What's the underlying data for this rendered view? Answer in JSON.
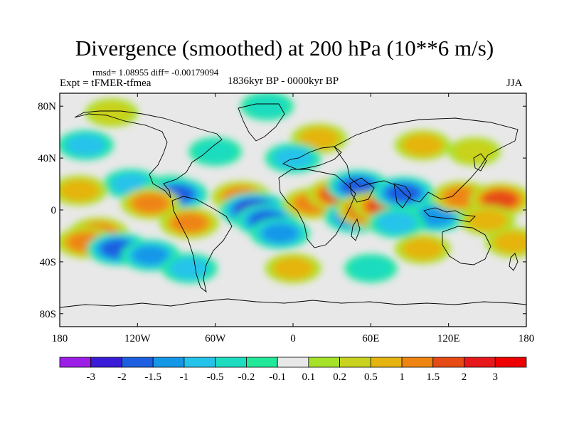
{
  "title": "Divergence (smoothed) at 200 hPa (10**6 m/s)",
  "stats": "rmsd= 1.08955 diff= -0.00179094",
  "experiment": "Expt = tFMER-tfmea",
  "period": "1836kyr BP - 0000kyr BP",
  "season": "JJA",
  "chart_data": {
    "type": "heatmap",
    "title": "Divergence (smoothed) at 200 hPa (10**6 m/s)",
    "xlabel": "",
    "ylabel": "",
    "xlim": [
      -180,
      180
    ],
    "ylim": [
      -90,
      90
    ],
    "x_ticks": [
      {
        "value": -180,
        "label": "180"
      },
      {
        "value": -120,
        "label": "120W"
      },
      {
        "value": -60,
        "label": "60W"
      },
      {
        "value": 0,
        "label": "0"
      },
      {
        "value": 60,
        "label": "60E"
      },
      {
        "value": 120,
        "label": "120E"
      },
      {
        "value": 180,
        "label": "180"
      }
    ],
    "y_ticks": [
      {
        "value": 80,
        "label": "80N"
      },
      {
        "value": 40,
        "label": "40N"
      },
      {
        "value": 0,
        "label": "0"
      },
      {
        "value": -40,
        "label": "40S"
      },
      {
        "value": -80,
        "label": "80S"
      }
    ],
    "colorbar": {
      "levels": [
        -3,
        -2,
        -1.5,
        -1,
        -0.5,
        -0.2,
        -0.1,
        0.1,
        0.2,
        0.5,
        1,
        1.5,
        2,
        3
      ],
      "labels": [
        "-3",
        "-2",
        "-1.5",
        "-1",
        "-0.5",
        "-0.2",
        "-0.1",
        "0.1",
        "0.2",
        "0.5",
        "1",
        "1.5",
        "2",
        "3"
      ],
      "colors": [
        "#9b1fe6",
        "#3a1bd8",
        "#1d5fe0",
        "#1597e8",
        "#25c3ea",
        "#1ddcc0",
        "#22e89a",
        "#e8e8e8",
        "#a6e22a",
        "#c9d21f",
        "#e5b411",
        "#ee8412",
        "#e64b16",
        "#e6181b",
        "#ee0000"
      ]
    },
    "features": [
      {
        "lon": -150,
        "lat": -18,
        "value": 1.5
      },
      {
        "lon": -160,
        "lat": -25,
        "value": 1.5
      },
      {
        "lon": -135,
        "lat": -30,
        "value": -2
      },
      {
        "lon": -110,
        "lat": -35,
        "value": -1.5
      },
      {
        "lon": -125,
        "lat": 20,
        "value": -1
      },
      {
        "lon": -95,
        "lat": 15,
        "value": -1
      },
      {
        "lon": -90,
        "lat": 12,
        "value": -2
      },
      {
        "lon": -110,
        "lat": 5,
        "value": 1.5
      },
      {
        "lon": -80,
        "lat": -10,
        "value": 1.5
      },
      {
        "lon": -165,
        "lat": 15,
        "value": 1
      },
      {
        "lon": -40,
        "lat": 10,
        "value": 1.5
      },
      {
        "lon": -30,
        "lat": 0,
        "value": -3
      },
      {
        "lon": -20,
        "lat": -8,
        "value": -2
      },
      {
        "lon": -10,
        "lat": -18,
        "value": -1.5
      },
      {
        "lon": 15,
        "lat": 5,
        "value": 1.5
      },
      {
        "lon": 35,
        "lat": 12,
        "value": 2
      },
      {
        "lon": 48,
        "lat": -5,
        "value": -2
      },
      {
        "lon": 50,
        "lat": 18,
        "value": -2
      },
      {
        "lon": 60,
        "lat": 0,
        "value": 3
      },
      {
        "lon": 70,
        "lat": 3,
        "value": 2
      },
      {
        "lon": 85,
        "lat": 13,
        "value": -2
      },
      {
        "lon": 110,
        "lat": -5,
        "value": -1.5
      },
      {
        "lon": 130,
        "lat": 10,
        "value": 1.5
      },
      {
        "lon": 160,
        "lat": 8,
        "value": 2
      },
      {
        "lon": 80,
        "lat": -10,
        "value": -1
      },
      {
        "lon": 150,
        "lat": -8,
        "value": 1
      },
      {
        "lon": 100,
        "lat": -30,
        "value": 1
      },
      {
        "lon": 170,
        "lat": -25,
        "value": 1
      },
      {
        "lon": -160,
        "lat": 50,
        "value": -1
      },
      {
        "lon": -60,
        "lat": 45,
        "value": -0.5
      },
      {
        "lon": 20,
        "lat": 55,
        "value": 1
      },
      {
        "lon": 0,
        "lat": 40,
        "value": -1
      },
      {
        "lon": 100,
        "lat": 50,
        "value": 1
      },
      {
        "lon": 140,
        "lat": 45,
        "value": 0.5
      },
      {
        "lon": -80,
        "lat": -45,
        "value": -1
      },
      {
        "lon": 0,
        "lat": -45,
        "value": 1
      },
      {
        "lon": 60,
        "lat": -45,
        "value": -0.5
      },
      {
        "lon": -140,
        "lat": 75,
        "value": 0.5
      },
      {
        "lon": -20,
        "lat": 80,
        "value": -0.5
      }
    ]
  }
}
